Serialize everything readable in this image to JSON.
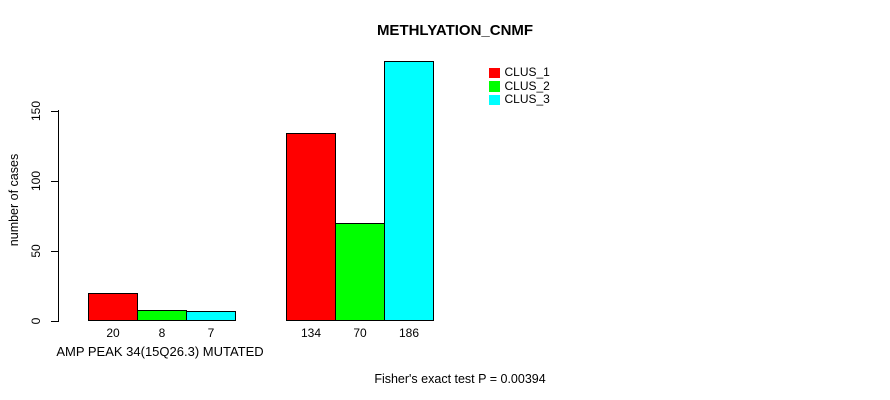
{
  "chart_data": {
    "type": "bar",
    "title": "METHLYATION_CNMF",
    "ylabel": "number of cases",
    "xlabel": "AMP PEAK 34(15Q26.3) MUTATED",
    "annotation": "Fisher's exact test P = 0.00394",
    "yticks": [
      0,
      50,
      100,
      150
    ],
    "ylim": [
      0,
      186
    ],
    "grid": false,
    "bar_value_labels": true,
    "legend_position": "top-right",
    "series": [
      {
        "name": "CLUS_1",
        "color": "#ff0000",
        "values": [
          20,
          134
        ]
      },
      {
        "name": "CLUS_2",
        "color": "#00ff00",
        "values": [
          8,
          70
        ]
      },
      {
        "name": "CLUS_3",
        "color": "#00ffff",
        "values": [
          7,
          186
        ]
      }
    ]
  },
  "colors": {
    "background": "#ffffff",
    "axis": "#000000",
    "text": "#000000"
  }
}
